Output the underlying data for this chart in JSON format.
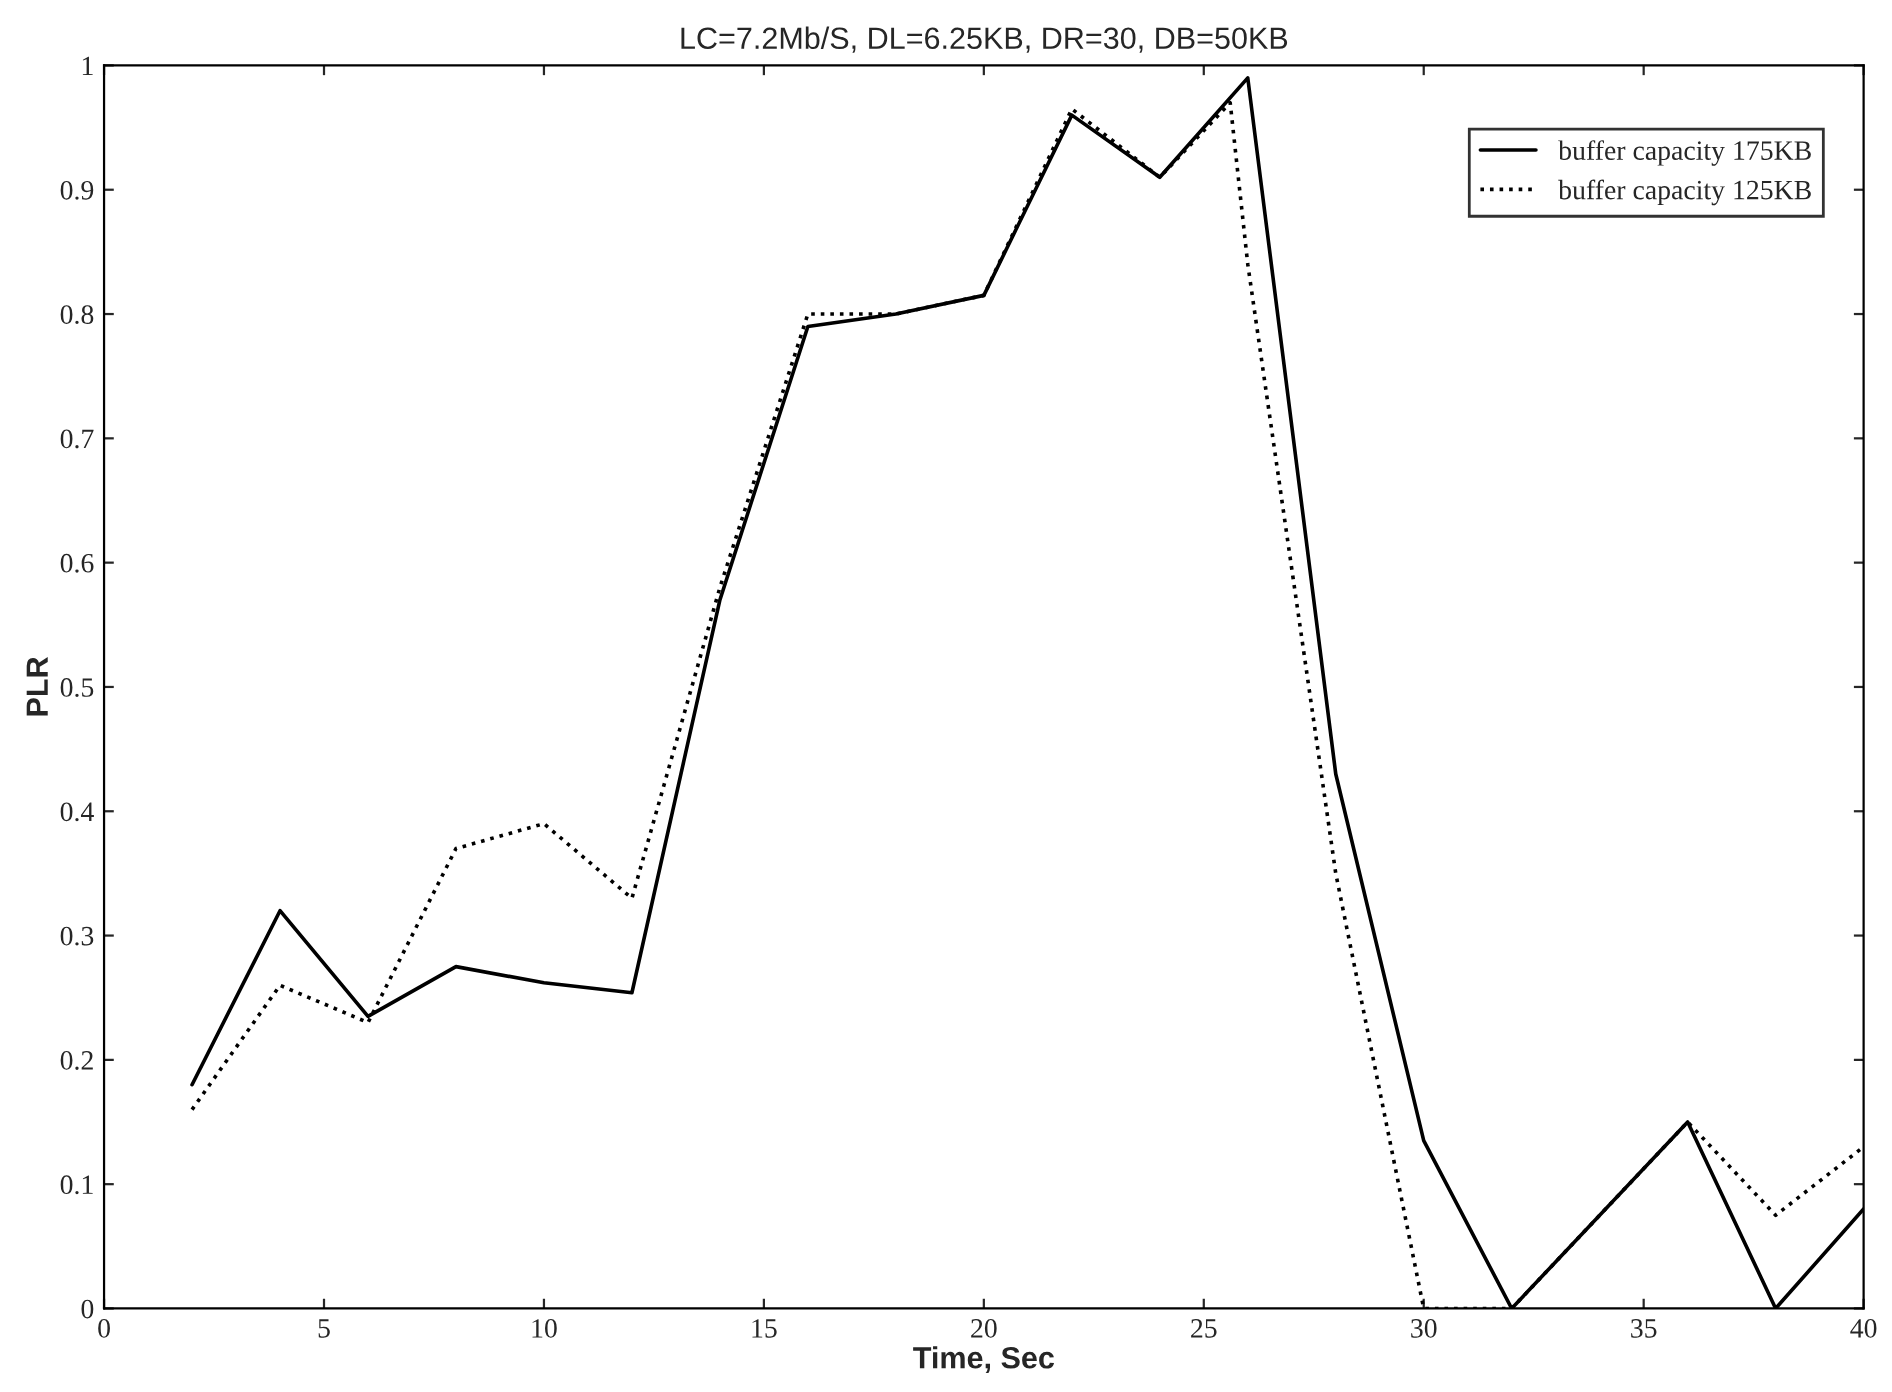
{
  "chart_data": {
    "type": "line",
    "title": "LC=7.2Mb/S, DL=6.25KB, DR=30, DB=50KB",
    "xlabel": "Time, Sec",
    "ylabel": "PLR",
    "xlim": [
      0,
      40
    ],
    "xticks": [
      0,
      5,
      10,
      15,
      20,
      25,
      30,
      35,
      40
    ],
    "ylim": [
      0,
      1
    ],
    "yticks": [
      0,
      0.1,
      0.2,
      0.3,
      0.4,
      0.5,
      0.6,
      0.7,
      0.8,
      0.9,
      1
    ],
    "grid": false,
    "legend": "top right",
    "marker": "none",
    "series": [
      {
        "name": "buffer capacity 175KB",
        "color": "#000000",
        "line_style": "solid",
        "x": [
          2,
          4,
          6,
          8,
          10,
          12,
          14,
          16,
          18,
          20,
          22,
          24,
          26,
          28,
          30,
          32,
          34,
          36,
          38,
          40
        ],
        "values": [
          0.18,
          0.32,
          0.235,
          0.275,
          0.262,
          0.254,
          0.57,
          0.79,
          0.8,
          0.815,
          0.96,
          0.91,
          0.99,
          0.43,
          0.135,
          0.0,
          0.075,
          0.15,
          0.0,
          0.08
        ]
      },
      {
        "name": "buffer capacity 125KB",
        "color": "#000000",
        "line_style": "dotted",
        "x": [
          2,
          4,
          6,
          8,
          10,
          12,
          14,
          16,
          18,
          20,
          22,
          24,
          25.6,
          26,
          28,
          30,
          32,
          34,
          36,
          38,
          40
        ],
        "values": [
          0.16,
          0.26,
          0.23,
          0.37,
          0.39,
          0.33,
          0.58,
          0.8,
          0.8,
          0.815,
          0.965,
          0.91,
          0.97,
          0.84,
          0.35,
          0.0,
          0.0,
          0.075,
          0.15,
          0.075,
          0.13
        ]
      }
    ]
  }
}
